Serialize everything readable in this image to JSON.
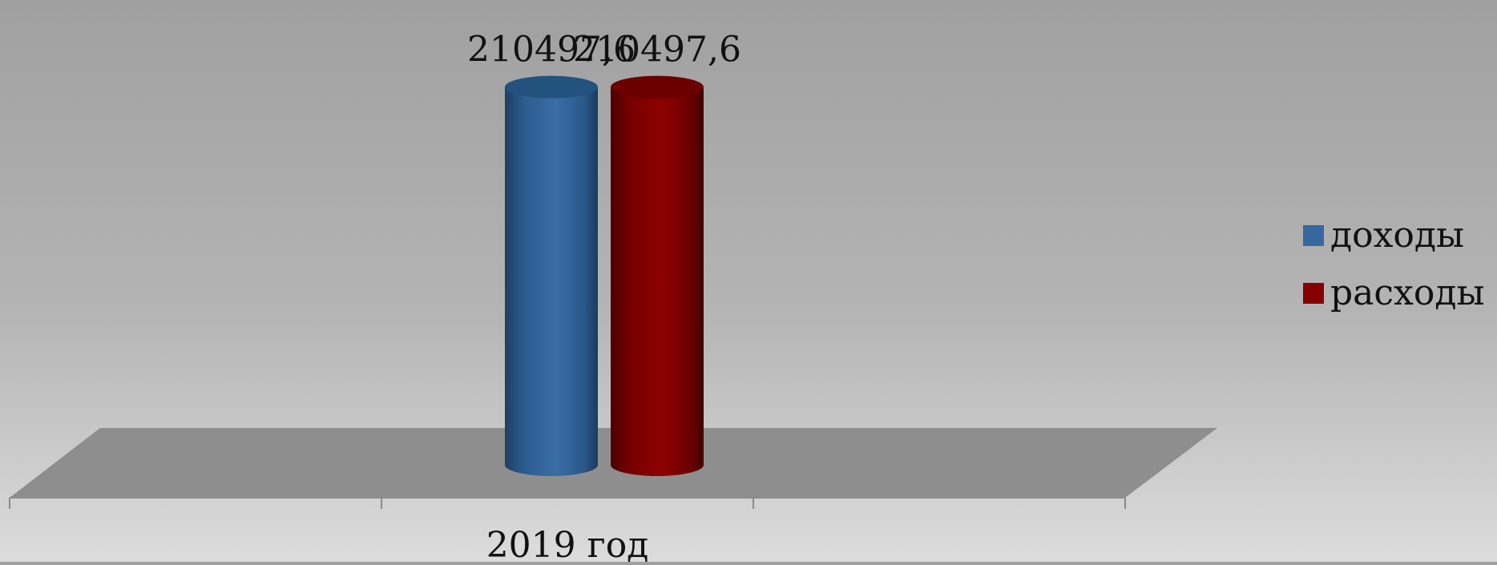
{
  "chart_data": {
    "type": "bar",
    "categories": [
      "2019 год"
    ],
    "series": [
      {
        "name": "доходы",
        "values": [
          210497.6
        ],
        "label": "210497,6",
        "color": "#34689f"
      },
      {
        "name": "расходы",
        "values": [
          210497.6
        ],
        "label": "210497,6",
        "color": "#860000"
      }
    ],
    "ylim": [
      0,
      230000
    ],
    "grid": false,
    "legend": "right",
    "bar_shape": "cylinder-3d"
  }
}
